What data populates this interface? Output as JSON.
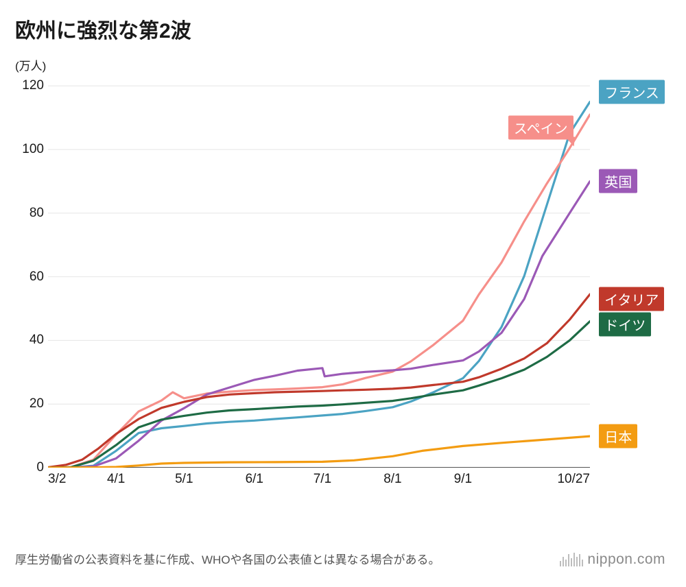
{
  "title": "欧州に強烈な第2波",
  "y_unit": "(万人)",
  "chart": {
    "type": "line",
    "background_color": "#ffffff",
    "grid_color": "#e6e6e6",
    "axis_color": "#1a1a1a",
    "stroke_width": 3.2,
    "plot": {
      "x_range": [
        0,
        239
      ],
      "y_range": [
        0,
        125
      ]
    },
    "y_ticks": [
      0,
      20,
      40,
      60,
      80,
      100,
      120
    ],
    "x_ticks": [
      {
        "label": "3/2",
        "x": 0,
        "align": "start"
      },
      {
        "label": "4/1",
        "x": 30
      },
      {
        "label": "5/1",
        "x": 60
      },
      {
        "label": "6/1",
        "x": 91
      },
      {
        "label": "7/1",
        "x": 121
      },
      {
        "label": "8/1",
        "x": 152
      },
      {
        "label": "9/1",
        "x": 183
      },
      {
        "label": "10/27",
        "x": 239,
        "align": "end"
      }
    ],
    "series": [
      {
        "name": "フランス",
        "color": "#4ba3c3",
        "label_pos": {
          "x": 243,
          "y": 118
        },
        "pts": [
          [
            0,
            0
          ],
          [
            10,
            0.05
          ],
          [
            20,
            0.6
          ],
          [
            30,
            5.3
          ],
          [
            40,
            10.9
          ],
          [
            50,
            12.4
          ],
          [
            60,
            13.1
          ],
          [
            70,
            13.9
          ],
          [
            80,
            14.4
          ],
          [
            91,
            14.8
          ],
          [
            100,
            15.3
          ],
          [
            110,
            15.8
          ],
          [
            121,
            16.4
          ],
          [
            130,
            16.9
          ],
          [
            140,
            17.8
          ],
          [
            152,
            19.0
          ],
          [
            160,
            20.8
          ],
          [
            170,
            23.7
          ],
          [
            183,
            28.1
          ],
          [
            190,
            33.5
          ],
          [
            200,
            44.2
          ],
          [
            210,
            60.2
          ],
          [
            220,
            82.6
          ],
          [
            230,
            105.0
          ],
          [
            239,
            115.0
          ]
        ]
      },
      {
        "name": "スペイン",
        "color": "#f68f8a",
        "label_pos": {
          "x": 203,
          "y": 107
        },
        "label_pointer": "br",
        "pts": [
          [
            0,
            0
          ],
          [
            10,
            0.15
          ],
          [
            20,
            2.5
          ],
          [
            30,
            10.4
          ],
          [
            40,
            17.7
          ],
          [
            50,
            21.1
          ],
          [
            55,
            23.7
          ],
          [
            60,
            21.8
          ],
          [
            70,
            23.3
          ],
          [
            80,
            23.9
          ],
          [
            91,
            24.4
          ],
          [
            100,
            24.6
          ],
          [
            110,
            24.9
          ],
          [
            121,
            25.3
          ],
          [
            130,
            26.2
          ],
          [
            140,
            28.2
          ],
          [
            152,
            30.2
          ],
          [
            160,
            33.4
          ],
          [
            170,
            38.6
          ],
          [
            183,
            46.2
          ],
          [
            190,
            54.4
          ],
          [
            200,
            64.5
          ],
          [
            210,
            77.4
          ],
          [
            220,
            89.3
          ],
          [
            230,
            100.4
          ],
          [
            239,
            111.0
          ]
        ]
      },
      {
        "name": "英国",
        "color": "#9b59b6",
        "label_pos": {
          "x": 243,
          "y": 90
        },
        "pts": [
          [
            0,
            0
          ],
          [
            10,
            0.03
          ],
          [
            20,
            0.4
          ],
          [
            30,
            2.9
          ],
          [
            40,
            8.5
          ],
          [
            50,
            14.8
          ],
          [
            60,
            18.7
          ],
          [
            70,
            23.0
          ],
          [
            80,
            25.2
          ],
          [
            91,
            27.6
          ],
          [
            100,
            28.9
          ],
          [
            110,
            30.5
          ],
          [
            121,
            31.3
          ],
          [
            122,
            28.7
          ],
          [
            130,
            29.5
          ],
          [
            140,
            30.1
          ],
          [
            152,
            30.6
          ],
          [
            160,
            31.1
          ],
          [
            170,
            32.3
          ],
          [
            183,
            33.7
          ],
          [
            190,
            36.5
          ],
          [
            200,
            42.4
          ],
          [
            210,
            53.0
          ],
          [
            218,
            66.5
          ],
          [
            230,
            80.0
          ],
          [
            239,
            90.0
          ]
        ]
      },
      {
        "name": "イタリア",
        "color": "#c0392b",
        "label_pos": {
          "x": 243,
          "y": 53
        },
        "pts": [
          [
            0,
            0.1
          ],
          [
            8,
            0.9
          ],
          [
            15,
            2.5
          ],
          [
            22,
            5.9
          ],
          [
            30,
            10.6
          ],
          [
            40,
            15.3
          ],
          [
            50,
            18.8
          ],
          [
            60,
            20.7
          ],
          [
            70,
            22.2
          ],
          [
            80,
            23.0
          ],
          [
            91,
            23.4
          ],
          [
            100,
            23.7
          ],
          [
            110,
            23.9
          ],
          [
            121,
            24.1
          ],
          [
            130,
            24.3
          ],
          [
            140,
            24.5
          ],
          [
            152,
            24.8
          ],
          [
            160,
            25.2
          ],
          [
            170,
            26.0
          ],
          [
            183,
            27.0
          ],
          [
            190,
            28.4
          ],
          [
            200,
            31.1
          ],
          [
            210,
            34.3
          ],
          [
            220,
            39.1
          ],
          [
            230,
            46.5
          ],
          [
            239,
            54.5
          ]
        ]
      },
      {
        "name": "ドイツ",
        "color": "#1e6b45",
        "label_pos": {
          "x": 243,
          "y": 45
        },
        "pts": [
          [
            0,
            0
          ],
          [
            10,
            0.12
          ],
          [
            20,
            2.2
          ],
          [
            30,
            7.1
          ],
          [
            40,
            12.7
          ],
          [
            50,
            15.1
          ],
          [
            60,
            16.3
          ],
          [
            70,
            17.3
          ],
          [
            80,
            18.0
          ],
          [
            91,
            18.4
          ],
          [
            100,
            18.8
          ],
          [
            110,
            19.2
          ],
          [
            121,
            19.5
          ],
          [
            130,
            19.9
          ],
          [
            140,
            20.4
          ],
          [
            152,
            21.0
          ],
          [
            160,
            21.8
          ],
          [
            170,
            23.0
          ],
          [
            183,
            24.3
          ],
          [
            190,
            25.8
          ],
          [
            200,
            28.1
          ],
          [
            210,
            30.8
          ],
          [
            220,
            34.8
          ],
          [
            230,
            40.0
          ],
          [
            239,
            46.0
          ]
        ]
      },
      {
        "name": "日本",
        "color": "#f39c12",
        "label_pos": {
          "x": 243,
          "y": 10
        },
        "pts": [
          [
            0,
            0.01
          ],
          [
            20,
            0.09
          ],
          [
            30,
            0.22
          ],
          [
            40,
            0.7
          ],
          [
            50,
            1.3
          ],
          [
            60,
            1.5
          ],
          [
            80,
            1.7
          ],
          [
            100,
            1.75
          ],
          [
            121,
            1.85
          ],
          [
            135,
            2.3
          ],
          [
            152,
            3.6
          ],
          [
            165,
            5.3
          ],
          [
            183,
            6.8
          ],
          [
            200,
            7.8
          ],
          [
            215,
            8.6
          ],
          [
            230,
            9.4
          ],
          [
            239,
            9.9
          ]
        ]
      }
    ]
  },
  "footnote": "厚生労働省の公表資料を基に作成、WHOや各国の公表値とは異なる場合がある。",
  "brand": "nippon.com"
}
